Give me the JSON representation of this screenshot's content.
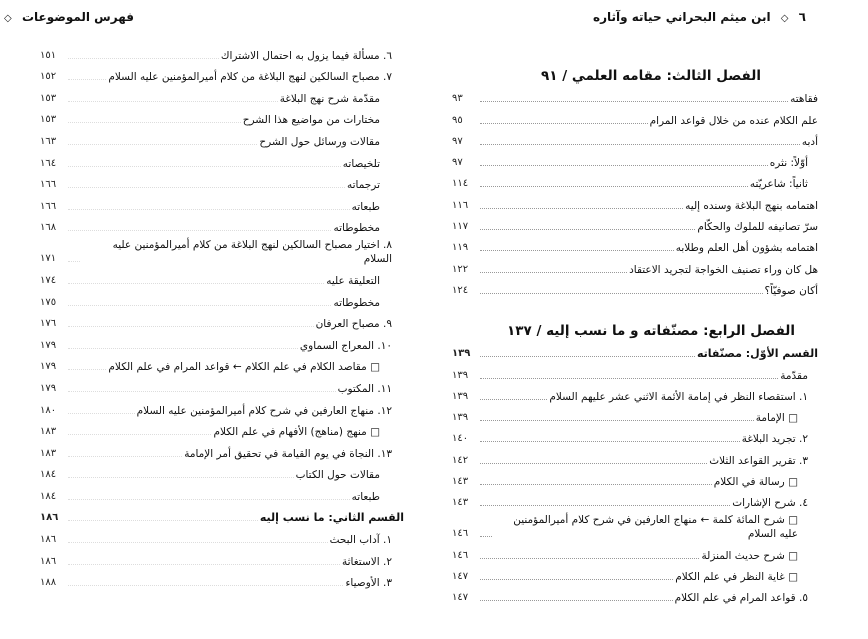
{
  "right_page": {
    "header": {
      "page_number": "٦",
      "title": "ابن ميثم البحراني حياته وآثاره"
    },
    "chapters": [
      {
        "title": "الفصل الثالث: مقامه العلمي / ٩١",
        "entries": [
          {
            "text": "فقاهته",
            "page": "٩٣",
            "level": 0
          },
          {
            "text": "علم الكلام عنده من خلال قواعد المرام",
            "page": "٩٥",
            "level": 0
          },
          {
            "text": "أدبه",
            "page": "٩٧",
            "level": 0
          },
          {
            "text": "أوّلاً: نثره",
            "page": "٩٧",
            "level": 1
          },
          {
            "text": "ثانياً: شاعريّته",
            "page": "١١٤",
            "level": 1
          },
          {
            "text": "اهتمامه بنهج البلاغة وسنده إليه",
            "page": "١١٦",
            "level": 0
          },
          {
            "text": "سرّ تصانيفه للملوك والحكّام",
            "page": "١١٧",
            "level": 0
          },
          {
            "text": "اهتمامه بشؤون أهل العلم وطلابه",
            "page": "١١٩",
            "level": 0
          },
          {
            "text": "هل كان وراء تصنيف الخواجة لتجريد الاعتقاد",
            "page": "١٢٢",
            "level": 0
          },
          {
            "text": "أكان صوفيّاً؟",
            "page": "١٢٤",
            "level": 0
          }
        ]
      },
      {
        "title": "الفصل الرابع: مصنّفاته و ما نسب إليه / ١٣٧",
        "entries": [
          {
            "text": "القسم الأوّل: مصنّفاته",
            "page": "١٣٩",
            "level": 0,
            "bold": true
          },
          {
            "text": "مقدّمة",
            "page": "١٣٩",
            "level": 1
          },
          {
            "text": "١. استقصاء النظر في إمامة الأئمة الاثني عشر عليهم السلام",
            "page": "١٣٩",
            "level": 1
          },
          {
            "text": "□ الإمامة",
            "page": "١٣٩",
            "level": 2
          },
          {
            "text": "٢. تجريد البلاغة",
            "page": "١٤٠",
            "level": 1
          },
          {
            "text": "٣. تقرير القواعد الثلاث",
            "page": "١٤٢",
            "level": 1
          },
          {
            "text": "□ رسالة في الكلام",
            "page": "١٤٣",
            "level": 2
          },
          {
            "text": "٤. شرح الإشارات",
            "page": "١٤٣",
            "level": 1
          },
          {
            "text": "□ شرح المائة كلمة ← منهاج العارفين في شرح كلام أميرالمؤمنين عليه السلام",
            "page": "١٤٦",
            "level": 2
          },
          {
            "text": "□ شرح حديث المنزلة",
            "page": "١٤٦",
            "level": 2
          },
          {
            "text": "□ غاية النظر في علم الكلام",
            "page": "١٤٧",
            "level": 2
          },
          {
            "text": "٥. قواعد المرام في علم الكلام",
            "page": "١٤٧",
            "level": 1
          }
        ]
      }
    ]
  },
  "left_page": {
    "header": {
      "page_number": "٧",
      "title": "فهرس الموضوعات"
    },
    "entries": [
      {
        "text": "٦. مسألة فيما يزول به احتمال الاشتراك",
        "page": "١٥١",
        "level": 1
      },
      {
        "text": "٧. مصباح السالكين لنهج البلاغة من كلام أميرالمؤمنين عليه السلام",
        "page": "١٥٢",
        "level": 1
      },
      {
        "text": "مقدّمة شرح نهج البلاغة",
        "page": "١٥٣",
        "level": 2
      },
      {
        "text": "مختارات من مواضيع هذا الشرح",
        "page": "١٥٣",
        "level": 2
      },
      {
        "text": "مقالات ورسائل حول الشرح",
        "page": "١٦٣",
        "level": 2
      },
      {
        "text": "تلخيصاته",
        "page": "١٦٤",
        "level": 2
      },
      {
        "text": "ترجماته",
        "page": "١٦٦",
        "level": 2
      },
      {
        "text": "طبعاته",
        "page": "١٦٦",
        "level": 2
      },
      {
        "text": "مخطوطاته",
        "page": "١٦٨",
        "level": 2
      },
      {
        "text": "٨. اختيار مصباح السالكين لنهج البلاغة من كلام أميرالمؤمنين عليه السلام",
        "page": "١٧١",
        "level": 1
      },
      {
        "text": "التعليقة عليه",
        "page": "١٧٤",
        "level": 2
      },
      {
        "text": "مخطوطاته",
        "page": "١٧٥",
        "level": 2
      },
      {
        "text": "٩. مصباح العرفان",
        "page": "١٧٦",
        "level": 1
      },
      {
        "text": "١٠. المعراج السماوي",
        "page": "١٧٩",
        "level": 1
      },
      {
        "text": "□ مقاصد الكلام في علم الكلام ← قواعد المرام في علم الكلام",
        "page": "١٧٩",
        "level": 2
      },
      {
        "text": "١١. المكتوب",
        "page": "١٧٩",
        "level": 1
      },
      {
        "text": "١٢. منهاج العارفين في شرح كلام أميرالمؤمنين عليه السلام",
        "page": "١٨٠",
        "level": 1
      },
      {
        "text": "□ منهج (مناهج) الأفهام في علم الكلام",
        "page": "١٨٣",
        "level": 2
      },
      {
        "text": "١٣. النجاة في يوم القيامة في تحقيق أمر الإمامة",
        "page": "١٨٣",
        "level": 1
      },
      {
        "text": "مقالات حول الكتاب",
        "page": "١٨٤",
        "level": 2
      },
      {
        "text": "طبعاته",
        "page": "١٨٤",
        "level": 2
      },
      {
        "text": "القسم الثاني: ما نسب إليه",
        "page": "١٨٦",
        "level": 0,
        "bold": true
      },
      {
        "text": "١. آداب البحث",
        "page": "١٨٦",
        "level": 1
      },
      {
        "text": "٢. الاستغاثة",
        "page": "١٨٦",
        "level": 1
      },
      {
        "text": "٣. الأوصياء",
        "page": "١٨٨",
        "level": 1
      }
    ]
  },
  "header_separator_icon": "diamond-icon"
}
